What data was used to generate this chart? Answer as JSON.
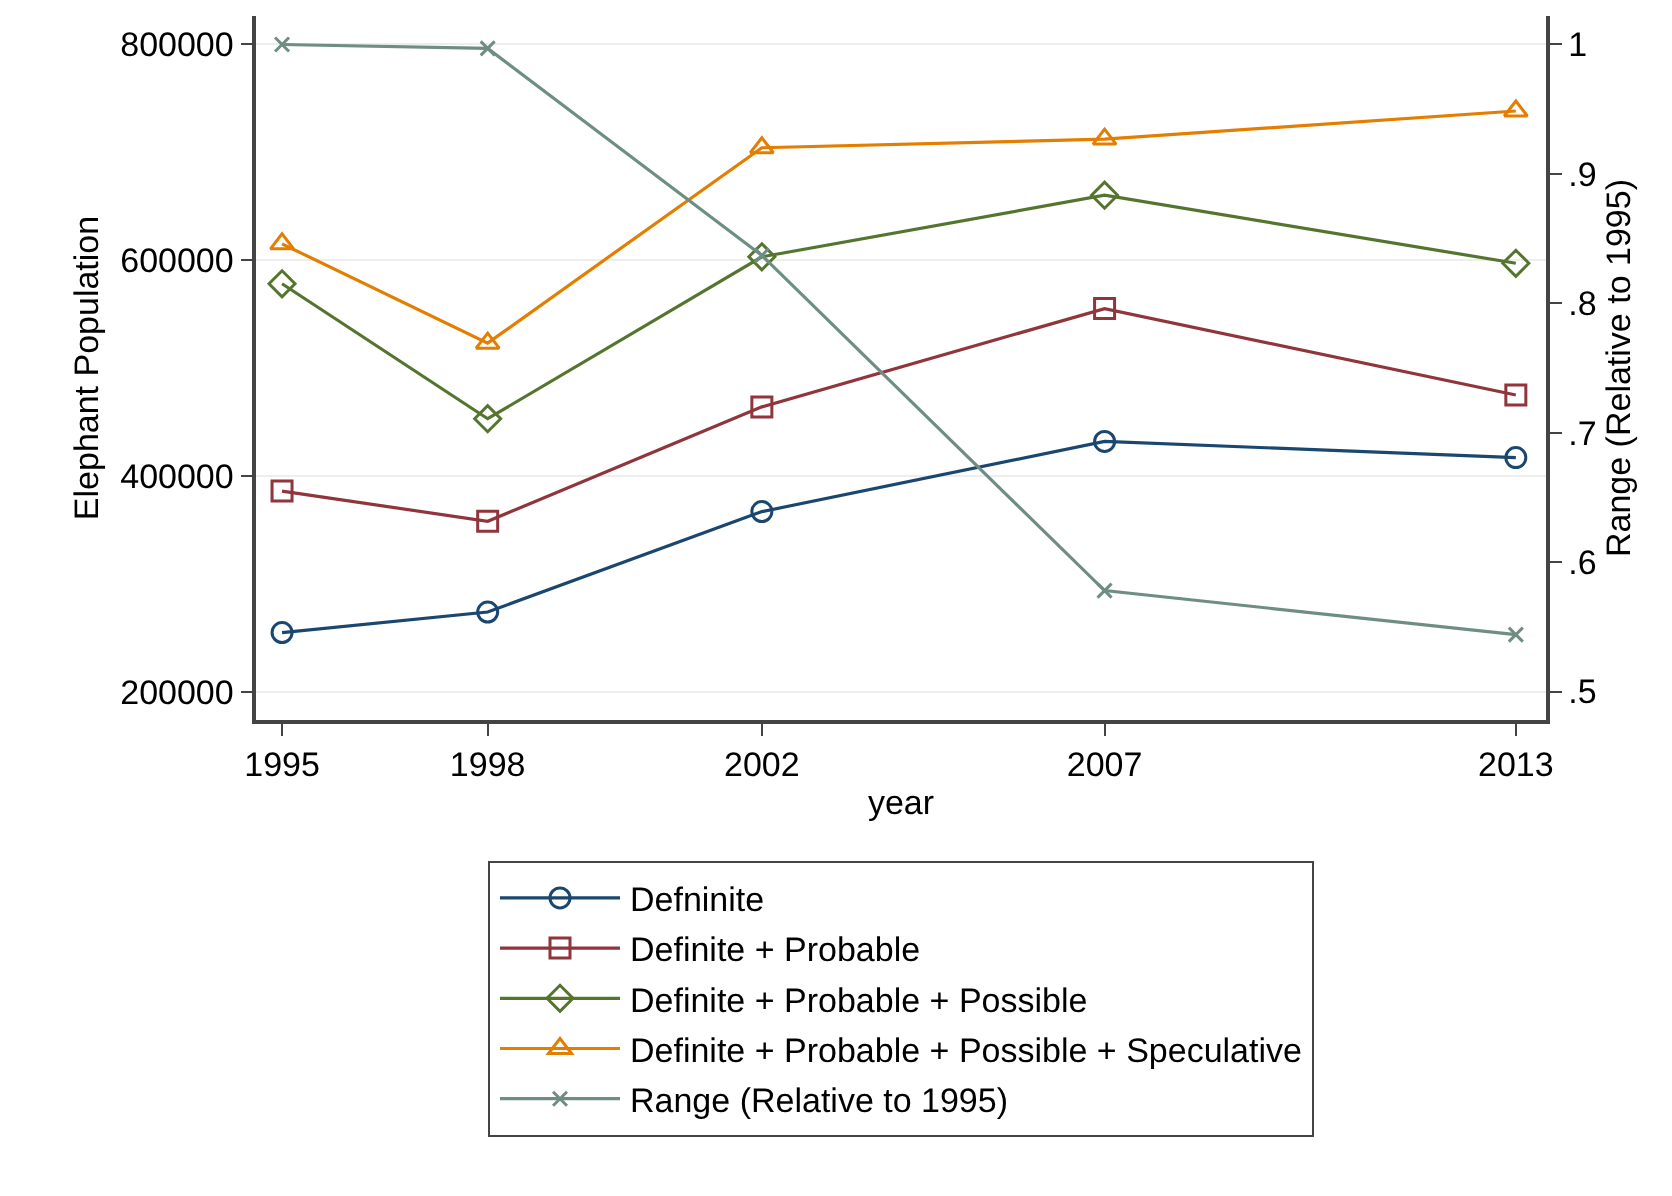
{
  "chart_data": {
    "type": "line",
    "xlabel": "year",
    "ylabel": "Elephant Population",
    "y2label": "Range (Relative to 1995)",
    "x": [
      1995,
      1998,
      2002,
      2007,
      2013
    ],
    "xlim": [
      1994.62,
      2013.44
    ],
    "xticks": [
      1995,
      1998,
      2002,
      2007,
      2013
    ],
    "ylim": [
      174000,
      826000
    ],
    "yticks": [
      200000,
      400000,
      600000,
      800000
    ],
    "y2lim": [
      0.478,
      1.022
    ],
    "y2ticks": [
      {
        "value": 0.5,
        "label": ".5"
      },
      {
        "value": 0.6,
        "label": ".6"
      },
      {
        "value": 0.7,
        "label": ".7"
      },
      {
        "value": 0.8,
        "label": ".8"
      },
      {
        "value": 0.9,
        "label": ".9"
      },
      1
    ],
    "grid": "y",
    "legend": "bottom",
    "series": [
      {
        "name": "Defninite",
        "color": "#1a476f",
        "marker": "circle",
        "values": [
          255000,
          274000,
          367000,
          432000,
          417000
        ]
      },
      {
        "name": "Definite + Probable",
        "color": "#90353b",
        "marker": "square",
        "values": [
          386000,
          358000,
          464000,
          555000,
          475000
        ]
      },
      {
        "name": "Definite + Probable + Possible",
        "color": "#55752f",
        "marker": "diamond",
        "values": [
          578000,
          453000,
          603000,
          660000,
          597000
        ]
      },
      {
        "name": "Definite + Probable + Possible + Speculative",
        "color": "#e37e00",
        "marker": "triangle",
        "values": [
          615000,
          523000,
          704000,
          712000,
          738000
        ]
      },
      {
        "name": "Range (Relative to 1995)",
        "color": "#6e8e84",
        "marker": "cross",
        "axis": "y2",
        "values": [
          1.0,
          0.997,
          0.837,
          0.578,
          0.544
        ]
      }
    ]
  }
}
